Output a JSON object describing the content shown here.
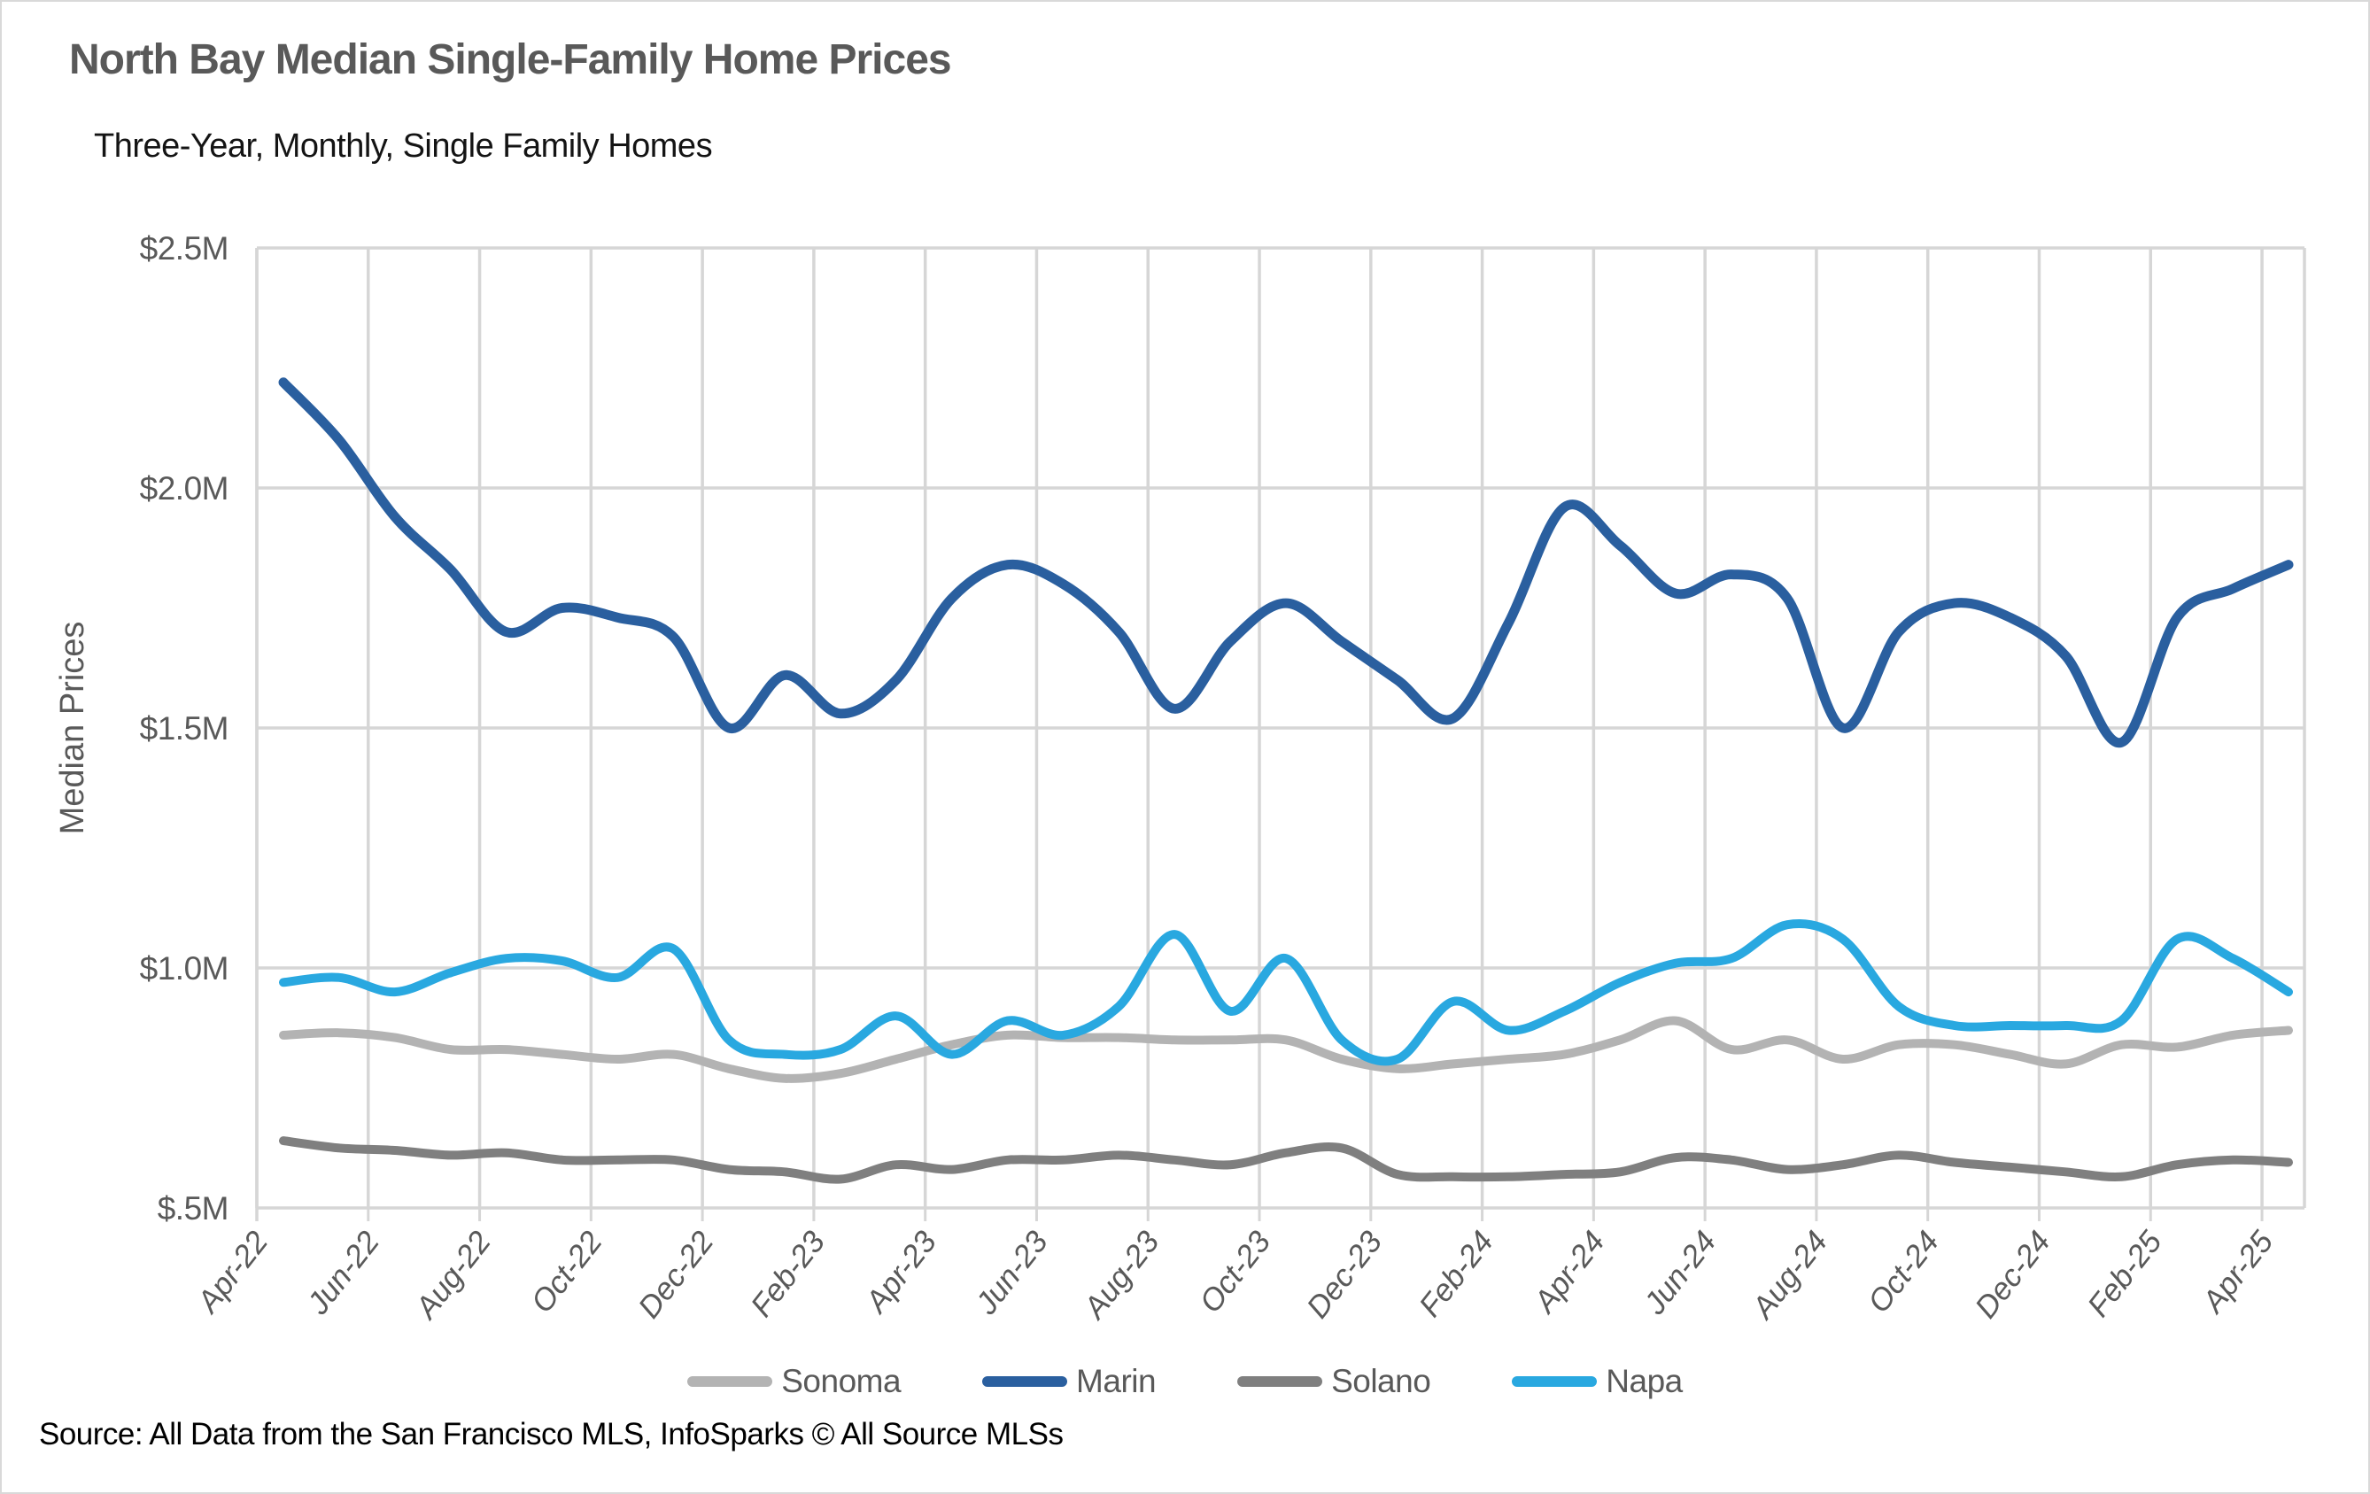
{
  "header": {
    "title": "North Bay Median Single-Family Home Prices",
    "subtitle": "Three-Year, Monthly, Single Family Homes"
  },
  "footer": {
    "source": "Source: All Data from the San Francisco MLS, InfoSparks © All Source MLSs"
  },
  "colors": {
    "title_text": "#595959",
    "axis_text": "#595959",
    "gridline": "#d6d6d6",
    "sonoma": "#b3b3b3",
    "marin": "#2a5f9f",
    "solano": "#7f7f7f",
    "napa": "#29a8e0"
  },
  "chart_data": {
    "type": "line",
    "title": "North Bay Median Single-Family Home Prices",
    "subtitle": "Three-Year, Monthly, Single Family Homes",
    "xlabel": "",
    "ylabel": "Median Prices",
    "ylim": [
      0.5,
      2.5
    ],
    "grid": true,
    "legend_position": "bottom",
    "y_ticks": [
      {
        "label": "$2.5M",
        "value": 2.5
      },
      {
        "label": "$2.0M",
        "value": 2.0
      },
      {
        "label": "$1.5M",
        "value": 1.5
      },
      {
        "label": "$1.0M",
        "value": 1.0
      },
      {
        "label": "$.5M",
        "value": 0.5
      }
    ],
    "x_tick_labels": [
      "Apr-22",
      "Jun-22",
      "Aug-22",
      "Oct-22",
      "Dec-22",
      "Feb-23",
      "Apr-23",
      "Jun-23",
      "Aug-23",
      "Oct-23",
      "Dec-23",
      "Feb-24",
      "Apr-24",
      "Jun-24",
      "Aug-24",
      "Oct-24",
      "Dec-24",
      "Feb-25",
      "Apr-25"
    ],
    "months": [
      "Apr-22",
      "May-22",
      "Jun-22",
      "Jul-22",
      "Aug-22",
      "Sep-22",
      "Oct-22",
      "Nov-22",
      "Dec-22",
      "Jan-23",
      "Feb-23",
      "Mar-23",
      "Apr-23",
      "May-23",
      "Jun-23",
      "Jul-23",
      "Aug-23",
      "Sep-23",
      "Oct-23",
      "Nov-23",
      "Dec-23",
      "Jan-24",
      "Feb-24",
      "Mar-24",
      "Apr-24",
      "May-24",
      "Jun-24",
      "Jul-24",
      "Aug-24",
      "Sep-24",
      "Oct-24",
      "Nov-24",
      "Dec-24",
      "Jan-25",
      "Feb-25",
      "Mar-25",
      "Apr-25"
    ],
    "series": [
      {
        "name": "Sonoma",
        "color": "#b3b3b3",
        "values": [
          0.86,
          0.865,
          0.855,
          0.83,
          0.83,
          0.82,
          0.81,
          0.82,
          0.79,
          0.77,
          0.78,
          0.81,
          0.84,
          0.86,
          0.855,
          0.855,
          0.85,
          0.85,
          0.85,
          0.81,
          0.79,
          0.8,
          0.81,
          0.82,
          0.85,
          0.89,
          0.83,
          0.85,
          0.81,
          0.84,
          0.84,
          0.82,
          0.8,
          0.84,
          0.835,
          0.86,
          0.87
        ]
      },
      {
        "name": "Marin",
        "color": "#2a5f9f",
        "values": [
          2.22,
          2.1,
          1.94,
          1.83,
          1.7,
          1.75,
          1.73,
          1.69,
          1.5,
          1.61,
          1.53,
          1.6,
          1.77,
          1.84,
          1.8,
          1.7,
          1.54,
          1.68,
          1.76,
          1.68,
          1.6,
          1.52,
          1.72,
          1.96,
          1.88,
          1.78,
          1.82,
          1.77,
          1.5,
          1.7,
          1.76,
          1.73,
          1.65,
          1.47,
          1.73,
          1.79,
          1.84
        ]
      },
      {
        "name": "Solano",
        "color": "#7f7f7f",
        "values": [
          0.64,
          0.625,
          0.62,
          0.61,
          0.615,
          0.6,
          0.6,
          0.6,
          0.58,
          0.575,
          0.56,
          0.59,
          0.58,
          0.6,
          0.6,
          0.61,
          0.6,
          0.59,
          0.615,
          0.625,
          0.57,
          0.565,
          0.565,
          0.57,
          0.575,
          0.605,
          0.6,
          0.58,
          0.59,
          0.61,
          0.595,
          0.585,
          0.575,
          0.565,
          0.59,
          0.6,
          0.595
        ]
      },
      {
        "name": "Napa",
        "color": "#29a8e0",
        "values": [
          0.97,
          0.98,
          0.95,
          0.99,
          1.02,
          1.015,
          0.98,
          1.04,
          0.85,
          0.82,
          0.83,
          0.9,
          0.82,
          0.89,
          0.86,
          0.92,
          1.07,
          0.91,
          1.02,
          0.85,
          0.81,
          0.93,
          0.87,
          0.91,
          0.97,
          1.01,
          1.02,
          1.09,
          1.06,
          0.92,
          0.88,
          0.88,
          0.88,
          0.89,
          1.06,
          1.02,
          0.95
        ]
      }
    ]
  }
}
